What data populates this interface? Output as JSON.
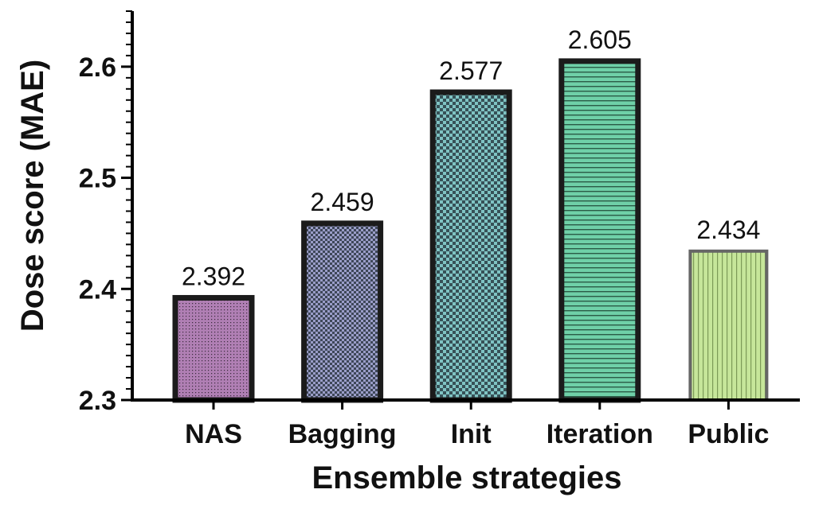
{
  "chart_data": {
    "type": "bar",
    "xlabel": "Ensemble strategies",
    "ylabel": "Dose score  (MAE)",
    "ylim": [
      2.3,
      2.65
    ],
    "yticks": [
      2.3,
      2.4,
      2.5,
      2.6
    ],
    "ytick_labels": [
      "2.3",
      "2.4",
      "2.5",
      "2.6"
    ],
    "grid": false,
    "categories": [
      "NAS",
      "Bagging",
      "Init",
      "Iteration",
      "Public"
    ],
    "values": [
      2.392,
      2.459,
      2.577,
      2.605,
      2.434
    ],
    "value_labels": [
      "2.392",
      "2.459",
      "2.577",
      "2.605",
      "2.434"
    ],
    "bar_colors": [
      "#b07fb4",
      "#9a9dc8",
      "#7fc3c3",
      "#6fd0a8",
      "#c6e69a"
    ],
    "bar_patterns": [
      "dots",
      "checker",
      "checker",
      "horizontal-lines",
      "vertical-lines"
    ]
  }
}
